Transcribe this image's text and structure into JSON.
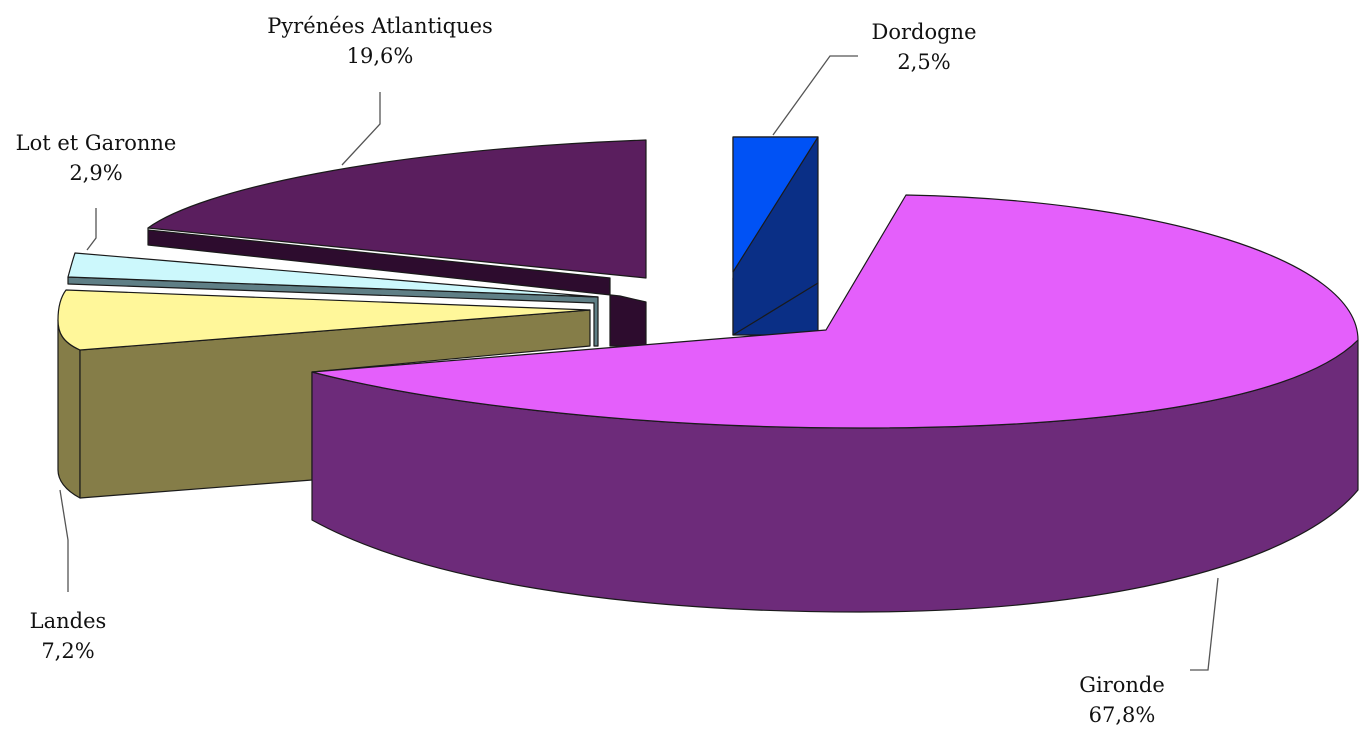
{
  "chart_data": {
    "type": "pie",
    "title": "",
    "three_d": true,
    "exploded": [
      "Dordogne",
      "Landes",
      "Lot et Garonne",
      "Pyrénées Atlantiques"
    ],
    "slices": [
      {
        "label": "Gironde",
        "display_value": "67,8%",
        "value": 67.8,
        "color": "#e45ffb"
      },
      {
        "label": "Dordogne",
        "display_value": "2,5%",
        "value": 2.5,
        "color": "#0050f0"
      },
      {
        "label": "Pyrénées Atlantiques",
        "display_value": "19,6%",
        "value": 19.6,
        "color": "#5a1e5e"
      },
      {
        "label": "Lot et Garonne",
        "display_value": "2,9%",
        "value": 2.9,
        "color": "#ccf8fc"
      },
      {
        "label": "Landes",
        "display_value": "7,2%",
        "value": 7.2,
        "color": "#fff79a"
      }
    ]
  }
}
